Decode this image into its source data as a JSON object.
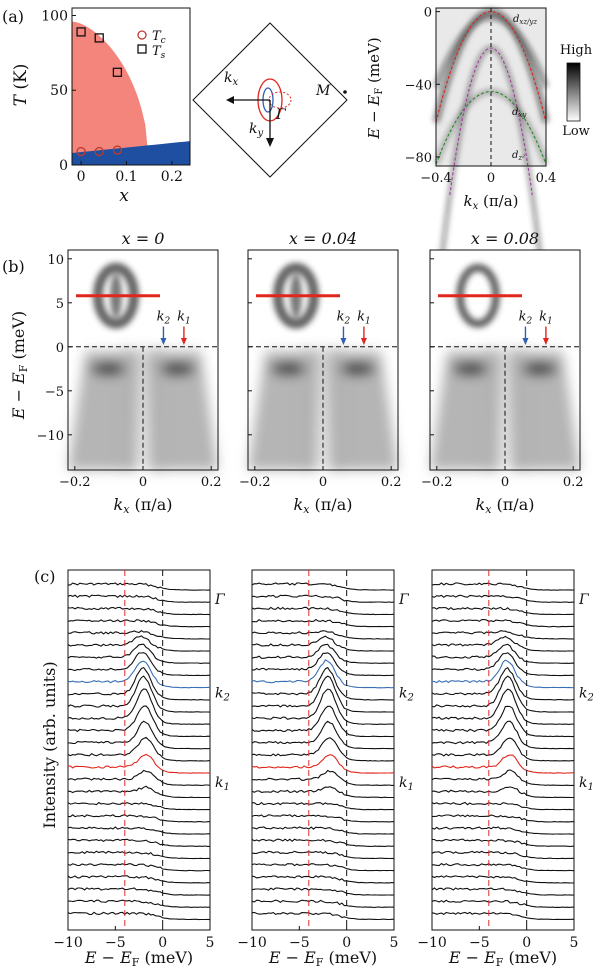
{
  "panel_labels": {
    "a": "(a)",
    "b": "(b)",
    "c": "(c)"
  },
  "chart_data": [
    {
      "id": "phase-diagram",
      "type": "scatter",
      "xlabel": "x",
      "ylabel": "T (K)",
      "xlim": [
        -0.02,
        0.24
      ],
      "ylim": [
        0,
        105
      ],
      "xticks": [
        "0",
        "0.1",
        "0.2"
      ],
      "yticks": [
        "0",
        "50",
        "100"
      ],
      "legend": [
        "T_c",
        "T_s"
      ],
      "legend_position": "top-right",
      "tc_points": {
        "x": [
          0,
          0.04,
          0.08
        ],
        "y": [
          9,
          9,
          10
        ]
      },
      "ts_points": {
        "x": [
          0,
          0.04,
          0.08
        ],
        "y": [
          89,
          85,
          62
        ]
      },
      "colors": {
        "nematic": "#f4857c",
        "sc": "#1f4fa0",
        "tc": "#c0392b",
        "ts": "#111111"
      }
    },
    {
      "id": "brillouin-zone",
      "type": "diagram",
      "labels": {
        "kx": "k_x",
        "ky": "k_y",
        "gamma": "Γ",
        "m": "M"
      }
    },
    {
      "id": "arpes-overview",
      "type": "heatmap",
      "xlabel": "k_x (π/a)",
      "ylabel": "E − E_F (meV)",
      "xlim": [
        -0.4,
        0.4
      ],
      "ylim": [
        -85,
        2
      ],
      "xticks": [
        "−0.4",
        "0",
        "0.4"
      ],
      "yticks": [
        "0",
        "−40",
        "−80"
      ],
      "band_labels": [
        "d_xz/yz",
        "d_xy",
        "d_z²"
      ],
      "colorbar": {
        "high": "High",
        "low": "Low"
      }
    },
    {
      "id": "arpes-doping",
      "type": "heatmap",
      "xlabel": "k_x (π/a)",
      "ylabel": "E − E_F (meV)",
      "xlim": [
        -0.22,
        0.22
      ],
      "ylim": [
        -14,
        11
      ],
      "xticks": [
        "−0.2",
        "0",
        "0.2"
      ],
      "yticks": [
        "10",
        "5",
        "0",
        "−5",
        "−10"
      ],
      "panels": [
        {
          "title": "x = 0"
        },
        {
          "title": "x = 0.04"
        },
        {
          "title": "x = 0.08"
        }
      ],
      "markers": {
        "k2": {
          "label": "k_2",
          "x": 0.06
        },
        "k1": {
          "label": "k_1",
          "x": 0.12
        }
      }
    },
    {
      "id": "edc-stacks",
      "type": "line",
      "xlabel": "E − E_F (meV)",
      "ylabel": "Intensity (arb. units)",
      "xlim": [
        -10,
        5
      ],
      "xticks": [
        "−10",
        "−5",
        "0",
        "5"
      ],
      "curve_count": 28,
      "gap_line_meV": -4,
      "labels": {
        "gamma": "Γ",
        "k2": "k_2",
        "k1": "k_1"
      },
      "colors": {
        "k2": "#3a6fb5",
        "k1": "#e0261d",
        "guide": "#d9302a"
      }
    }
  ]
}
